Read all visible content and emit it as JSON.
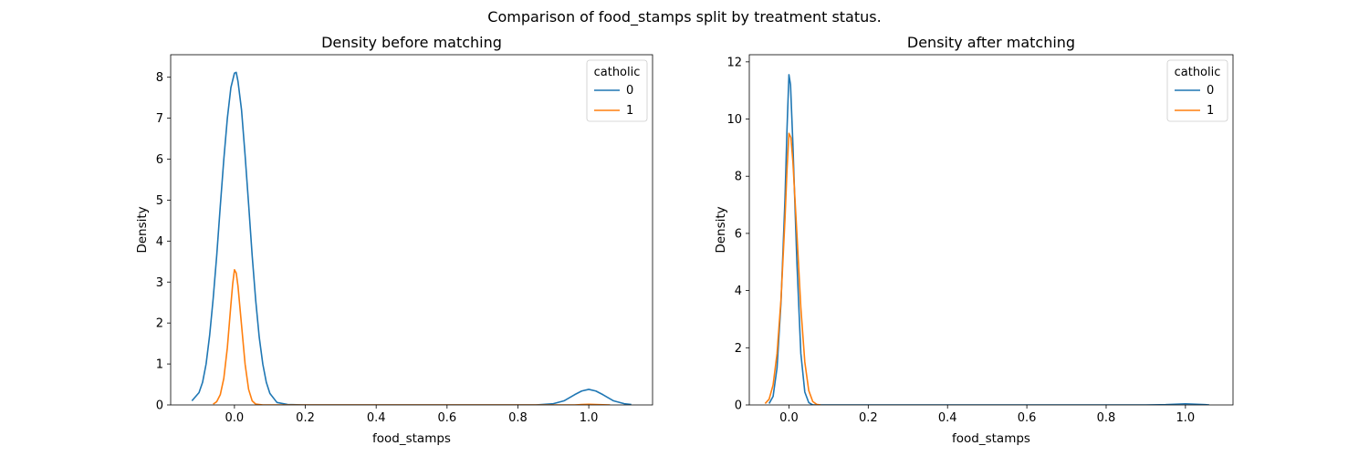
{
  "figure": {
    "suptitle": "Comparison of food_stamps split by treatment status."
  },
  "chart_data": [
    {
      "type": "line",
      "title": "Density before matching",
      "xlabel": "food_stamps",
      "ylabel": "Density",
      "xlim": [
        -0.18,
        1.18
      ],
      "ylim": [
        0,
        8.55
      ],
      "xticks": [
        0.0,
        0.2,
        0.4,
        0.6,
        0.8,
        1.0
      ],
      "xtick_labels": [
        "0.0",
        "0.2",
        "0.4",
        "0.6",
        "0.8",
        "1.0"
      ],
      "yticks": [
        0,
        1,
        2,
        3,
        4,
        5,
        6,
        7,
        8
      ],
      "ytick_labels": [
        "0",
        "1",
        "2",
        "3",
        "4",
        "5",
        "6",
        "7",
        "8"
      ],
      "legend": {
        "title": "catholic",
        "position": "top-right"
      },
      "series": [
        {
          "name": "0",
          "color": "#1f77b4",
          "points": [
            [
              -0.12,
              0.1
            ],
            [
              -0.1,
              0.3
            ],
            [
              -0.09,
              0.55
            ],
            [
              -0.08,
              1.0
            ],
            [
              -0.07,
              1.7
            ],
            [
              -0.06,
              2.6
            ],
            [
              -0.05,
              3.65
            ],
            [
              -0.04,
              4.85
            ],
            [
              -0.03,
              6.0
            ],
            [
              -0.02,
              7.0
            ],
            [
              -0.01,
              7.75
            ],
            [
              0.0,
              8.1
            ],
            [
              0.005,
              8.12
            ],
            [
              0.01,
              7.9
            ],
            [
              0.02,
              7.2
            ],
            [
              0.03,
              6.1
            ],
            [
              0.04,
              4.9
            ],
            [
              0.05,
              3.65
            ],
            [
              0.06,
              2.55
            ],
            [
              0.07,
              1.65
            ],
            [
              0.08,
              1.0
            ],
            [
              0.09,
              0.55
            ],
            [
              0.1,
              0.28
            ],
            [
              0.12,
              0.06
            ],
            [
              0.15,
              0.01
            ],
            [
              0.2,
              0.0
            ],
            [
              0.85,
              0.0
            ],
            [
              0.9,
              0.03
            ],
            [
              0.93,
              0.1
            ],
            [
              0.96,
              0.25
            ],
            [
              0.98,
              0.34
            ],
            [
              1.0,
              0.38
            ],
            [
              1.02,
              0.34
            ],
            [
              1.04,
              0.25
            ],
            [
              1.07,
              0.1
            ],
            [
              1.1,
              0.03
            ],
            [
              1.12,
              0.01
            ]
          ]
        },
        {
          "name": "1",
          "color": "#ff7f0e",
          "points": [
            [
              -0.06,
              0.02
            ],
            [
              -0.05,
              0.08
            ],
            [
              -0.04,
              0.25
            ],
            [
              -0.03,
              0.65
            ],
            [
              -0.02,
              1.4
            ],
            [
              -0.01,
              2.45
            ],
            [
              -0.005,
              2.95
            ],
            [
              0.0,
              3.3
            ],
            [
              0.005,
              3.22
            ],
            [
              0.01,
              2.9
            ],
            [
              0.02,
              1.95
            ],
            [
              0.03,
              1.0
            ],
            [
              0.04,
              0.38
            ],
            [
              0.05,
              0.1
            ],
            [
              0.06,
              0.02
            ],
            [
              0.08,
              0.0
            ],
            [
              0.96,
              0.0
            ],
            [
              0.98,
              0.01
            ],
            [
              1.0,
              0.015
            ],
            [
              1.02,
              0.01
            ],
            [
              1.06,
              0.0
            ]
          ]
        }
      ]
    },
    {
      "type": "line",
      "title": "Density after matching",
      "xlabel": "food_stamps",
      "ylabel": "Density",
      "xlim": [
        -0.1,
        1.12
      ],
      "ylim": [
        0,
        12.25
      ],
      "xticks": [
        0.0,
        0.2,
        0.4,
        0.6,
        0.8,
        1.0
      ],
      "xtick_labels": [
        "0.0",
        "0.2",
        "0.4",
        "0.6",
        "0.8",
        "1.0"
      ],
      "yticks": [
        0,
        2,
        4,
        6,
        8,
        10,
        12
      ],
      "ytick_labels": [
        "0",
        "2",
        "4",
        "6",
        "8",
        "10",
        "12"
      ],
      "legend": {
        "title": "catholic",
        "position": "top-right"
      },
      "series": [
        {
          "name": "0",
          "color": "#1f77b4",
          "points": [
            [
              -0.05,
              0.05
            ],
            [
              -0.04,
              0.3
            ],
            [
              -0.03,
              1.3
            ],
            [
              -0.02,
              3.6
            ],
            [
              -0.01,
              7.2
            ],
            [
              -0.005,
              9.6
            ],
            [
              0.0,
              11.55
            ],
            [
              0.004,
              11.2
            ],
            [
              0.01,
              9.1
            ],
            [
              0.02,
              5.0
            ],
            [
              0.03,
              1.8
            ],
            [
              0.04,
              0.45
            ],
            [
              0.05,
              0.08
            ],
            [
              0.06,
              0.0
            ],
            [
              0.9,
              0.0
            ],
            [
              0.95,
              0.01
            ],
            [
              1.0,
              0.04
            ],
            [
              1.05,
              0.01
            ],
            [
              1.06,
              0.0
            ]
          ]
        },
        {
          "name": "1",
          "color": "#ff7f0e",
          "points": [
            [
              -0.06,
              0.05
            ],
            [
              -0.05,
              0.2
            ],
            [
              -0.04,
              0.7
            ],
            [
              -0.03,
              1.8
            ],
            [
              -0.02,
              3.7
            ],
            [
              -0.01,
              6.5
            ],
            [
              -0.005,
              8.2
            ],
            [
              0.0,
              9.5
            ],
            [
              0.005,
              9.35
            ],
            [
              0.01,
              8.5
            ],
            [
              0.02,
              6.0
            ],
            [
              0.03,
              3.4
            ],
            [
              0.04,
              1.5
            ],
            [
              0.05,
              0.5
            ],
            [
              0.06,
              0.12
            ],
            [
              0.07,
              0.02
            ],
            [
              0.08,
              0.0
            ]
          ]
        }
      ]
    }
  ]
}
